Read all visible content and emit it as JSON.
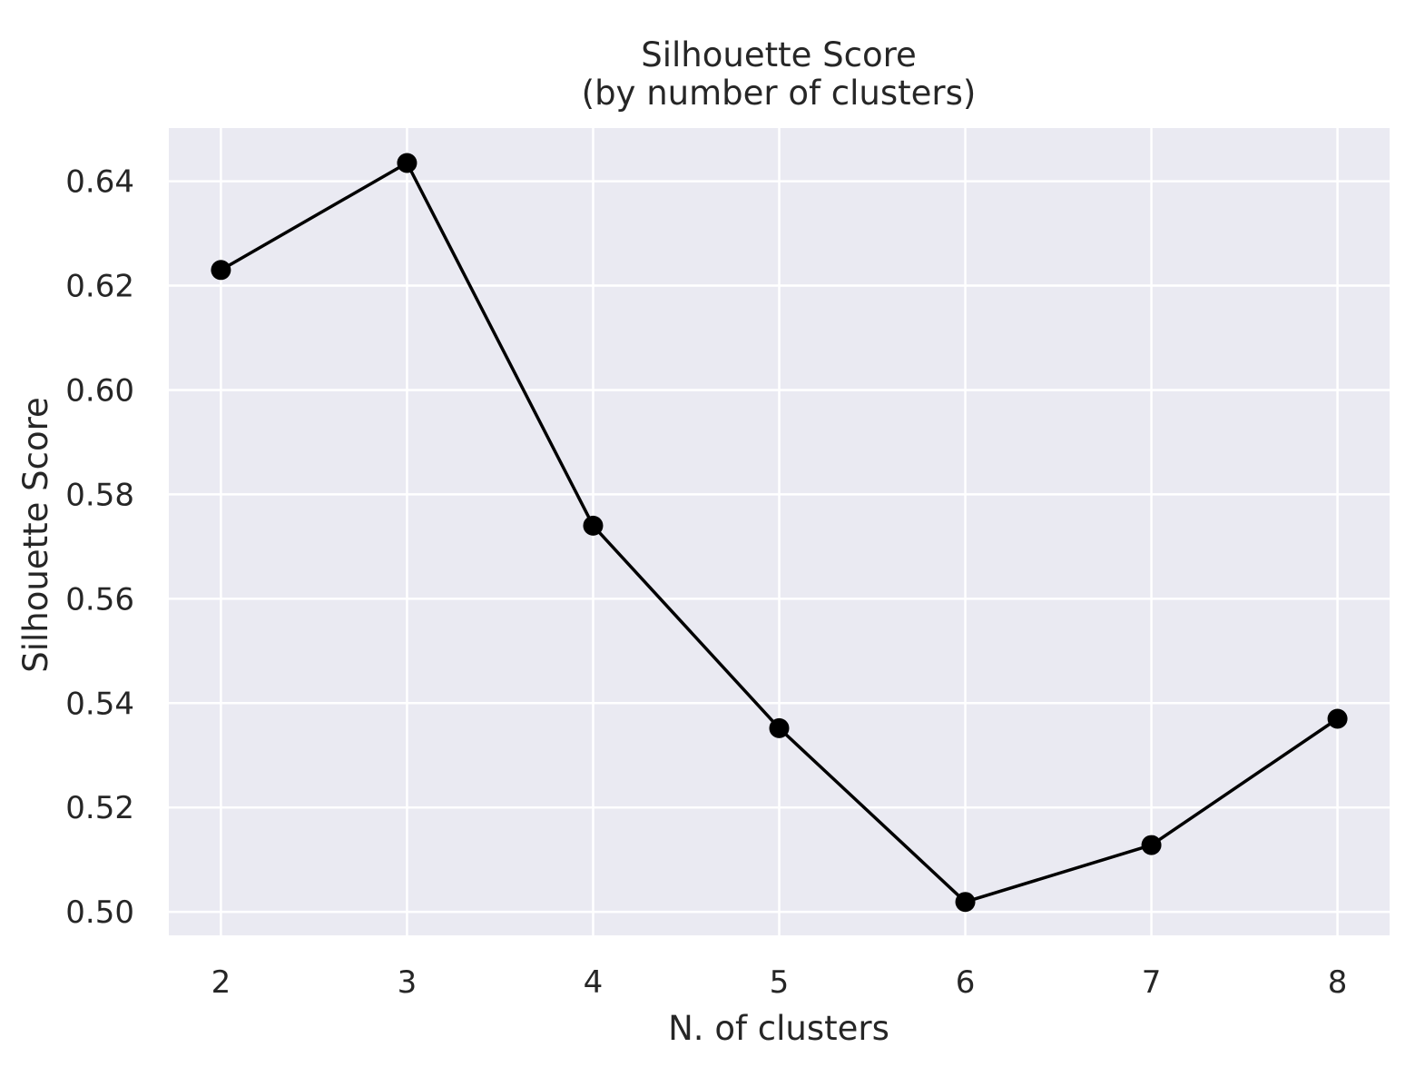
{
  "chart_data": {
    "type": "line",
    "title": "Silhouette Score",
    "subtitle": "(by number of clusters)",
    "xlabel": "N. of clusters",
    "ylabel": "Silhouette Score",
    "x": [
      2,
      3,
      4,
      5,
      6,
      7,
      8
    ],
    "y": [
      0.623,
      0.6435,
      0.574,
      0.5352,
      0.5019,
      0.5128,
      0.537
    ],
    "xlim": [
      1.72,
      8.28
    ],
    "ylim": [
      0.4955,
      0.6502
    ],
    "xticks": [
      2,
      3,
      4,
      5,
      6,
      7,
      8
    ],
    "xtick_labels": [
      "2",
      "3",
      "4",
      "5",
      "6",
      "7",
      "8"
    ],
    "yticks": [
      0.5,
      0.52,
      0.54,
      0.56,
      0.58,
      0.6,
      0.62,
      0.64
    ],
    "ytick_labels": [
      "0.50",
      "0.52",
      "0.54",
      "0.56",
      "0.58",
      "0.60",
      "0.62",
      "0.64"
    ],
    "grid": true,
    "colors": {
      "plot_background": "#eaeaf2",
      "grid": "#ffffff",
      "line": "#000000",
      "marker": "#000000",
      "text": "#262626"
    }
  }
}
